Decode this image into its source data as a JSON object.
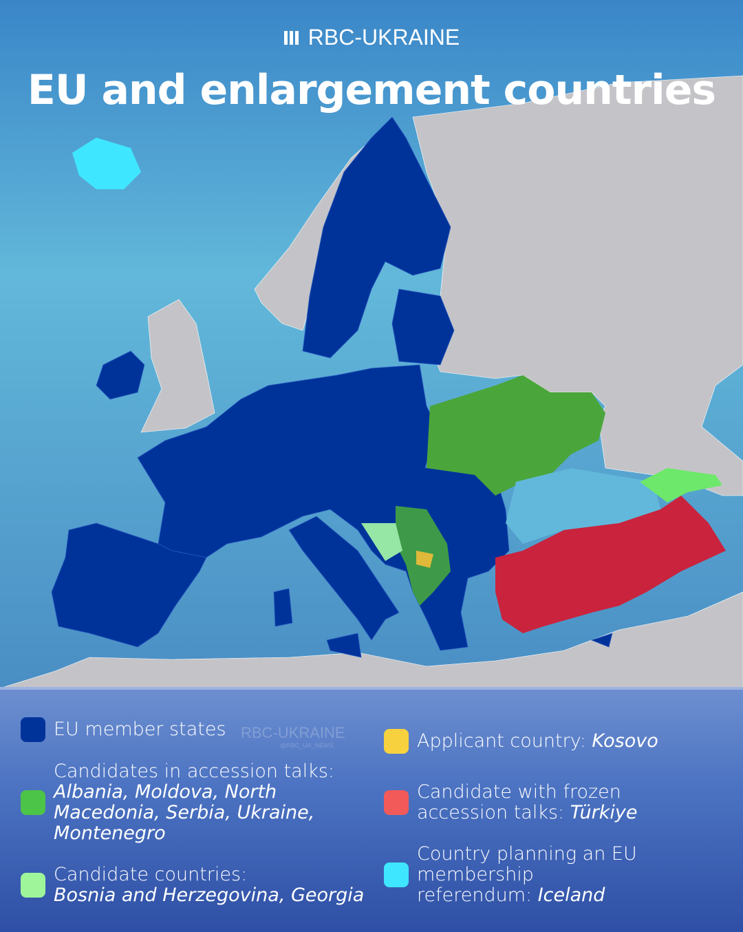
{
  "brand": {
    "name": "RBC-UKRAINE",
    "watermark": "RBC-UKRAINE",
    "watermark_handle": "@RBC_UA_NEWS"
  },
  "title": "EU and enlargement countries",
  "colors": {
    "eu_member": "#00339a",
    "accession_talks": "#4cc447",
    "candidate": "#9ef59a",
    "applicant": "#f7d23e",
    "frozen": "#f25a5a",
    "referendum": "#3fe6ff",
    "non_eu_land": "#c4c4c8",
    "sea": "#5fb3d8"
  },
  "legend": {
    "eu": {
      "label": "EU member states"
    },
    "accession": {
      "label": "Candidates in accession talks:",
      "countries": "Albania, Moldova, North Macedonia, Serbia, Ukraine, Montenegro"
    },
    "candidate": {
      "label": "Candidate countries:",
      "countries": "Bosnia and Herzegovina, Georgia"
    },
    "applicant": {
      "label": "Applicant country: ",
      "countries": "Kosovo"
    },
    "frozen": {
      "label": "Candidate with frozen accession talks: ",
      "countries": "Türkiye"
    },
    "referendum": {
      "label": "Country planning an EU membership referendum: ",
      "countries": "Iceland"
    }
  }
}
